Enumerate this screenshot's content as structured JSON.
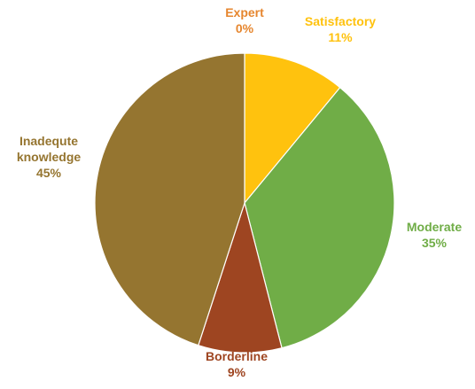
{
  "chart_data": {
    "type": "pie",
    "title": "",
    "start_angle_deg": 0,
    "direction": "clockwise",
    "slices": [
      {
        "name": "Expert",
        "label_lines": [
          "Expert"
        ],
        "value_label": "0%",
        "value": 0,
        "color": "#E6862E"
      },
      {
        "name": "Satisfactory",
        "label_lines": [
          "Satisfactory"
        ],
        "value_label": "11%",
        "value": 11,
        "color": "#FFC20E"
      },
      {
        "name": "Moderate",
        "label_lines": [
          "Moderate"
        ],
        "value_label": "35%",
        "value": 35,
        "color": "#70AD47"
      },
      {
        "name": "Borderline",
        "label_lines": [
          "Borderline"
        ],
        "value_label": "9%",
        "value": 9,
        "color": "#9E4521"
      },
      {
        "name": "Inadequte knowledge",
        "label_lines": [
          "Inadequte",
          "knowledge"
        ],
        "value_label": "45%",
        "value": 45,
        "color": "#957530"
      }
    ]
  }
}
